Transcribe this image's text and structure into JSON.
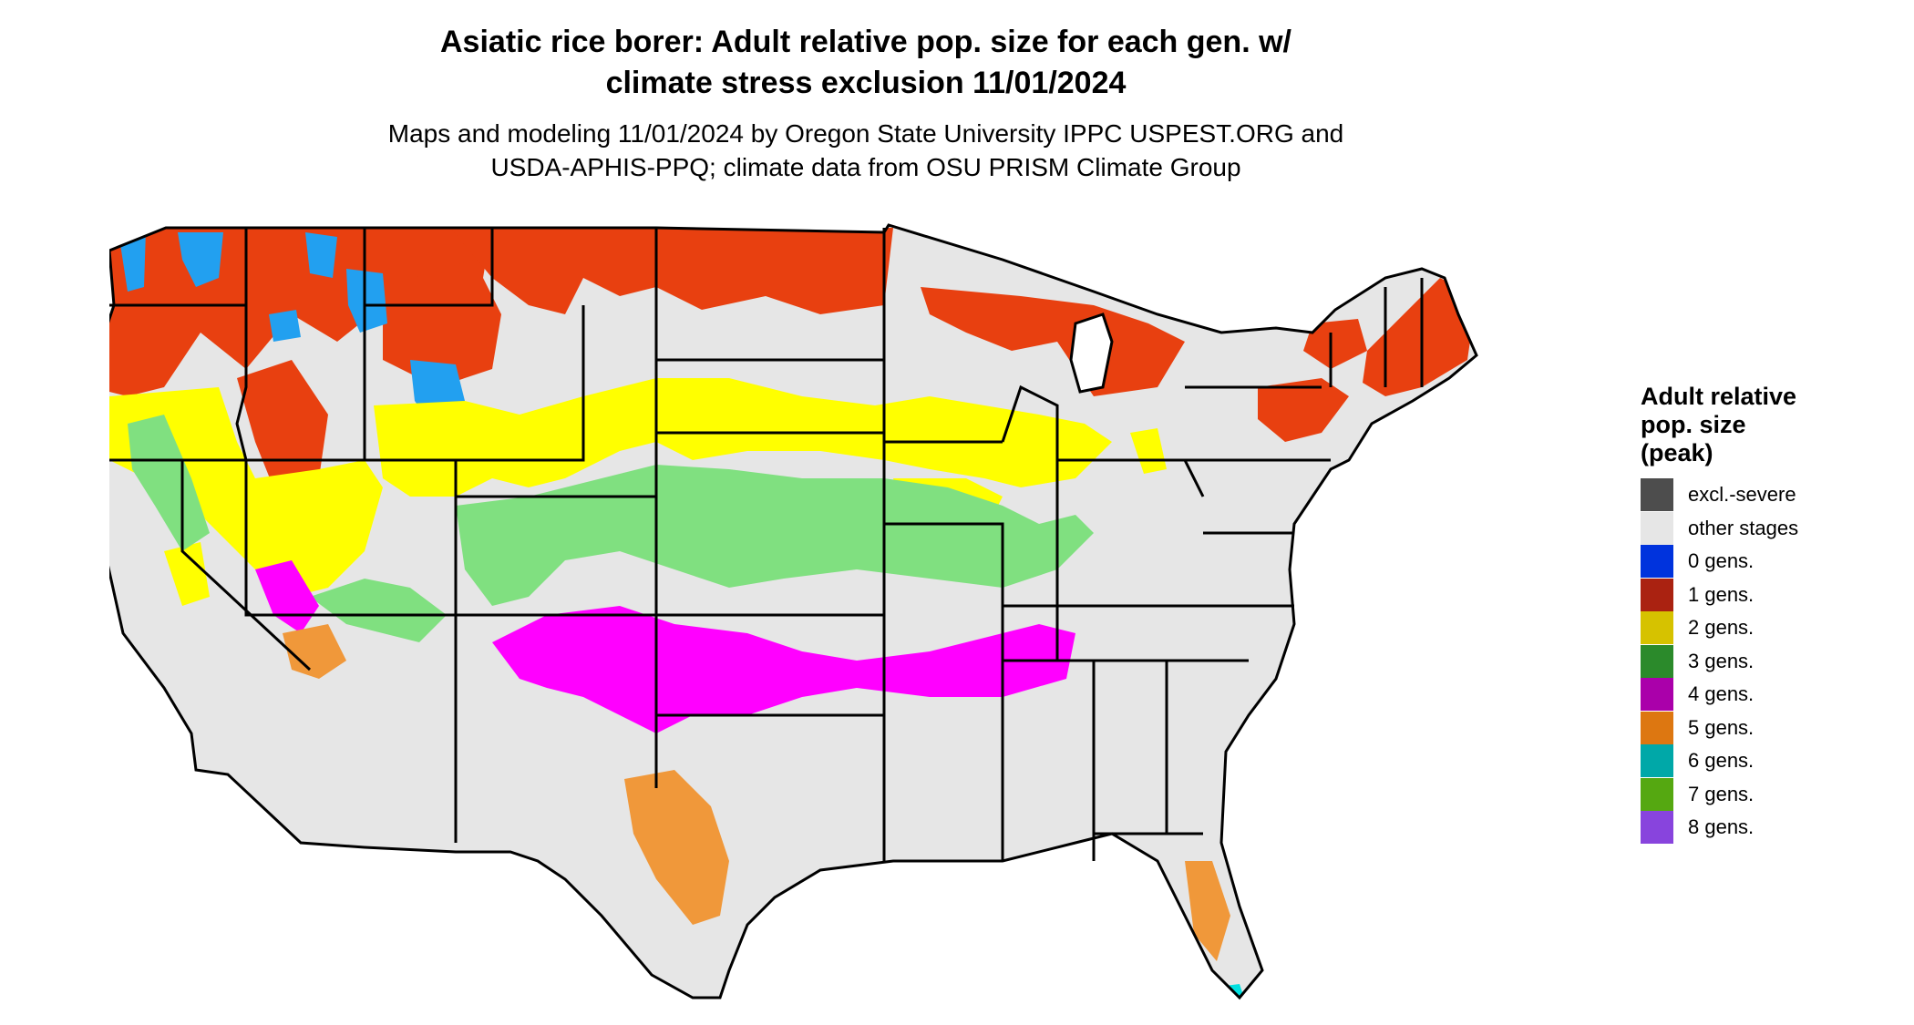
{
  "title_lines": [
    "Asiatic rice borer: Adult relative pop. size for each gen. w/",
    "climate stress exclusion 11/01/2024"
  ],
  "subtitle_lines": [
    "Maps and modeling 11/01/2024 by Oregon State University IPPC USPEST.ORG and",
    "USDA-APHIS-PPQ; climate data from OSU PRISM Climate Group"
  ],
  "legend": {
    "title_lines": [
      "Adult relative",
      "pop. size",
      "(peak)"
    ],
    "items": [
      {
        "label": "excl.-severe",
        "color": "#4d4d4d"
      },
      {
        "label": "other stages",
        "color": "#e6e6e6"
      },
      {
        "label": "0 gens.",
        "color": "#0033dd"
      },
      {
        "label": "1 gens.",
        "color": "#aa2211"
      },
      {
        "label": "2 gens.",
        "color": "#d6c200"
      },
      {
        "label": "3 gens.",
        "color": "#2b8a2b"
      },
      {
        "label": "4 gens.",
        "color": "#aa00aa"
      },
      {
        "label": "5 gens.",
        "color": "#dd7711"
      },
      {
        "label": "6 gens.",
        "color": "#00a8a8"
      },
      {
        "label": "7 gens.",
        "color": "#55a811"
      },
      {
        "label": "8 gens.",
        "color": "#8844dd"
      }
    ]
  },
  "map_colors": {
    "land": "#e6e6e6",
    "gen0_zone": "#22a0f0",
    "gen1_zone": "#e84010",
    "gen2_zone": "#ffff00",
    "gen3_zone": "#80e080",
    "gen4_zone": "#ff00ff",
    "gen5_zone": "#f0983a",
    "gen6_zone": "#00e0e0",
    "border": "#000000"
  }
}
